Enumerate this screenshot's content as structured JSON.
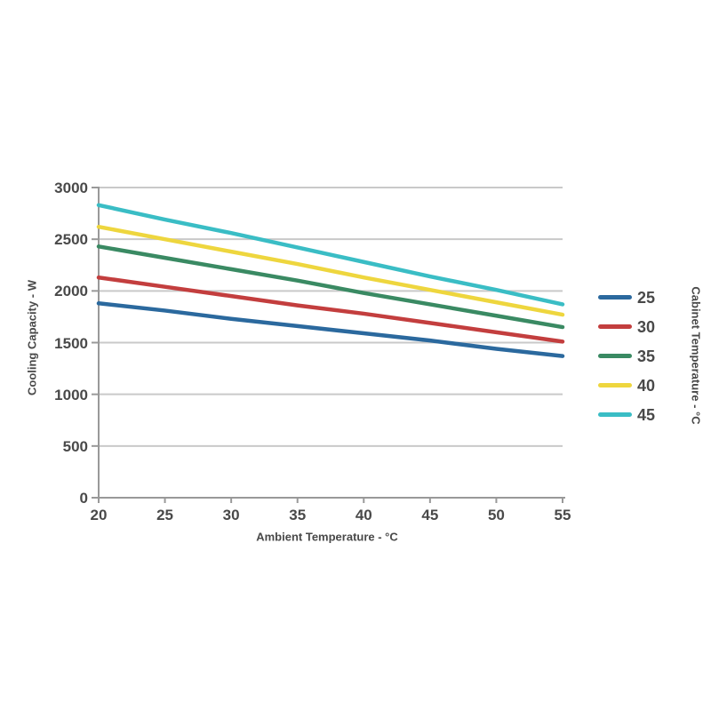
{
  "chart_data": {
    "type": "line",
    "title": "",
    "xlabel": "Ambient Temperature - °C",
    "ylabel": "Cooling Capacity - W",
    "legend_title": "Cabinet Temperature - °C",
    "legend_position": "right-of-plot",
    "x": [
      20,
      25,
      30,
      35,
      40,
      45,
      50,
      55
    ],
    "xlim": [
      20,
      55
    ],
    "ylim": [
      0,
      3000
    ],
    "xticks": [
      20,
      25,
      30,
      35,
      40,
      45,
      50,
      55
    ],
    "yticks": [
      0,
      500,
      1000,
      1500,
      2000,
      2500,
      3000
    ],
    "grid": "horizontal-only",
    "series": [
      {
        "name": "25",
        "color": "#2b699e",
        "values": [
          1880,
          1810,
          1730,
          1660,
          1590,
          1520,
          1440,
          1370
        ]
      },
      {
        "name": "30",
        "color": "#c33e3e",
        "values": [
          2130,
          2040,
          1950,
          1860,
          1780,
          1690,
          1600,
          1510
        ]
      },
      {
        "name": "35",
        "color": "#3a8a63",
        "values": [
          2430,
          2320,
          2210,
          2100,
          1980,
          1870,
          1760,
          1650
        ]
      },
      {
        "name": "40",
        "color": "#eed63e",
        "values": [
          2620,
          2500,
          2380,
          2260,
          2130,
          2010,
          1890,
          1770
        ]
      },
      {
        "name": "45",
        "color": "#3abdc5",
        "values": [
          2830,
          2690,
          2560,
          2420,
          2280,
          2140,
          2010,
          1870
        ]
      }
    ],
    "colors": {
      "gridline": "#c9c9c9",
      "axis": "#999999",
      "tick_text": "#494949"
    }
  }
}
